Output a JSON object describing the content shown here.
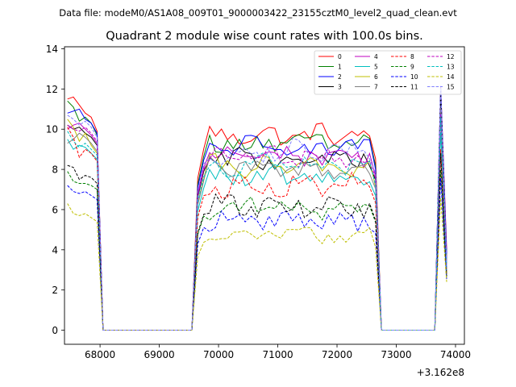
{
  "chart_data": {
    "type": "line",
    "suptitle": "Data file: modeM0/AS1A08_009T01_9000003422_23155cztM0_level2_quad_clean.evt",
    "title": "Quadrant 2 module wise count rates with 100.0s bins.",
    "xlabel": "",
    "ylabel": "",
    "offset_label": "+3.162e8",
    "xlim": [
      67400,
      74150
    ],
    "ylim": [
      -0.7,
      14.1
    ],
    "xticks": [
      68000,
      69000,
      70000,
      71000,
      72000,
      73000,
      74000
    ],
    "yticks": [
      0,
      2,
      4,
      6,
      8,
      10,
      12,
      14
    ],
    "xtick_labels": [
      "68000",
      "69000",
      "70000",
      "71000",
      "72000",
      "73000",
      "74000"
    ],
    "ytick_labels": [
      "0",
      "2",
      "4",
      "6",
      "8",
      "10",
      "12",
      "14"
    ],
    "legend_position": "upper right",
    "legend_columns": 4,
    "segments": [
      {
        "start": 67450,
        "n": 6
      },
      {
        "start": 68050,
        "n": 16
      },
      {
        "start": 69650,
        "n": 30
      },
      {
        "start": 72650,
        "n": 2
      },
      {
        "start": 72850,
        "n": 9
      },
      {
        "start": 73750,
        "n": 1
      }
    ],
    "gap_values": [
      [
        68050,
        69550
      ],
      [
        72750,
        73650
      ]
    ],
    "series": [
      {
        "name": "0",
        "color": "#ff0000",
        "dash": "solid",
        "start": [
          11.5,
          11.6,
          11.2,
          10.8,
          10.6,
          9.9
        ],
        "level": 9.7,
        "end": 4.0
      },
      {
        "name": "1",
        "color": "#008000",
        "dash": "solid",
        "start": [
          11.4,
          11.1,
          10.4,
          10.6,
          10.3,
          9.7
        ],
        "level": 9.3,
        "end": 3.6
      },
      {
        "name": "2",
        "color": "#0000ff",
        "dash": "solid",
        "start": [
          10.8,
          10.9,
          11.0,
          10.5,
          10.3,
          9.8
        ],
        "level": 9.1,
        "end": 3.8
      },
      {
        "name": "3",
        "color": "#000000",
        "dash": "solid",
        "start": [
          10.2,
          10.0,
          10.1,
          9.8,
          9.6,
          9.2
        ],
        "level": 8.5,
        "end": 3.2
      },
      {
        "name": "4",
        "color": "#bf00bf",
        "dash": "solid",
        "start": [
          10.0,
          10.2,
          10.3,
          10.0,
          9.7,
          9.3
        ],
        "level": 8.7,
        "end": 3.5
      },
      {
        "name": "5",
        "color": "#00bfbf",
        "dash": "solid",
        "start": [
          9.5,
          9.0,
          9.2,
          9.1,
          8.8,
          8.5
        ],
        "level": 7.6,
        "end": 3.3
      },
      {
        "name": "6",
        "color": "#bfbf00",
        "dash": "solid",
        "start": [
          10.5,
          10.1,
          9.4,
          9.8,
          9.2,
          8.8
        ],
        "level": 8.1,
        "end": 2.9
      },
      {
        "name": "7",
        "color": "#808080",
        "dash": "solid",
        "start": [
          9.3,
          9.5,
          9.8,
          9.6,
          9.3,
          8.9
        ],
        "level": 8.0,
        "end": 3.1
      },
      {
        "name": "8",
        "color": "#ff0000",
        "dash": "dashed",
        "start": [
          10.1,
          9.6,
          8.6,
          9.0,
          8.8,
          8.4
        ],
        "level": 7.2,
        "end": 2.8
      },
      {
        "name": "9",
        "color": "#008000",
        "dash": "dashed",
        "start": [
          7.9,
          7.4,
          7.3,
          7.3,
          7.2,
          7.0
        ],
        "level": 6.1,
        "end": 2.6
      },
      {
        "name": "10",
        "color": "#0000ff",
        "dash": "dashed",
        "start": [
          7.2,
          6.9,
          6.8,
          6.9,
          6.7,
          6.5
        ],
        "level": 5.5,
        "end": 2.5
      },
      {
        "name": "11",
        "color": "#000000",
        "dash": "dashed",
        "start": [
          8.2,
          8.1,
          7.5,
          7.7,
          7.6,
          7.3
        ],
        "level": 6.2,
        "end": 2.7
      },
      {
        "name": "12",
        "color": "#bf00bf",
        "dash": "dashed",
        "start": [
          10.2,
          10.0,
          9.9,
          10.1,
          9.8,
          9.4
        ],
        "level": 8.6,
        "end": 3.0
      },
      {
        "name": "13",
        "color": "#00bfbf",
        "dash": "dashed",
        "start": [
          9.9,
          9.4,
          9.1,
          9.3,
          9.0,
          8.7
        ],
        "level": 8.2,
        "end": 3.0
      },
      {
        "name": "14",
        "color": "#bfbf00",
        "dash": "dashed",
        "start": [
          6.3,
          5.8,
          5.7,
          5.8,
          5.6,
          5.4
        ],
        "level": 4.7,
        "end": 2.4
      },
      {
        "name": "15",
        "color": "#8080ff",
        "dash": "dashed",
        "start": [
          10.7,
          10.5,
          10.2,
          10.4,
          10.1,
          9.6
        ],
        "level": 8.9,
        "end": 3.2
      }
    ]
  }
}
